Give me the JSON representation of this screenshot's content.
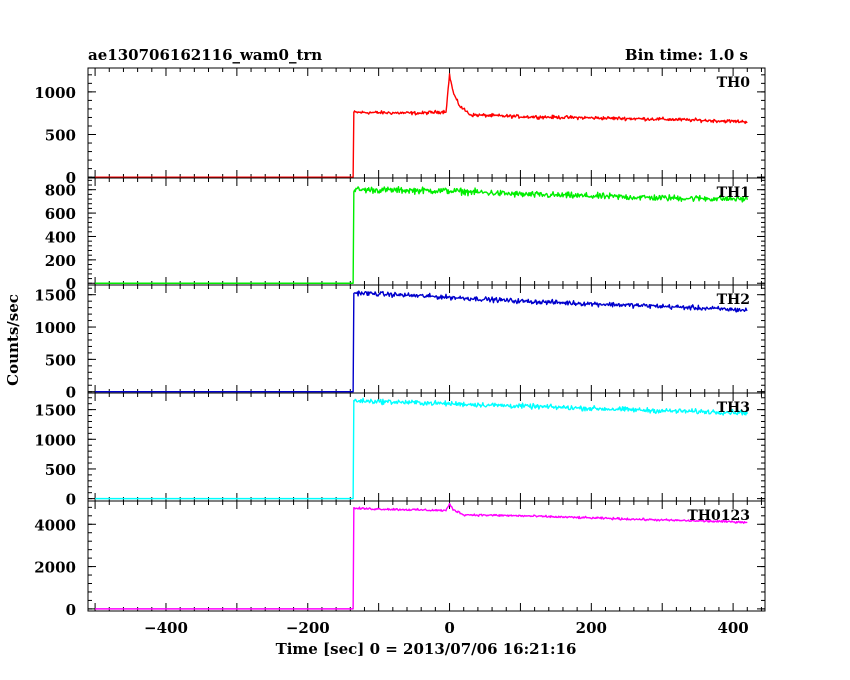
{
  "title_left": "ae130706162116_wam0_trn",
  "title_right": "Bin time: 1.0 s",
  "chart_data": {
    "type": "line",
    "xlabel": "Time [sec] 0 = 2013/07/06 16:21:16",
    "ylabel": "Counts/sec",
    "xlim": [
      -510,
      445
    ],
    "xticks": [
      -400,
      -200,
      0,
      200,
      400
    ],
    "grid": false,
    "panels": [
      {
        "name": "TH0",
        "color": "#ff0000",
        "ylim": [
          -10,
          1280
        ],
        "yticks": [
          0,
          500,
          1000
        ],
        "tick_labels": [
          "0",
          "500",
          "1000"
        ],
        "profile": {
          "step_time": -135,
          "pre": 0,
          "points": [
            [
              -135,
              760
            ],
            [
              -40,
              750
            ],
            [
              -5,
              770
            ],
            [
              0,
              1200
            ],
            [
              5,
              1000
            ],
            [
              10,
              900
            ],
            [
              15,
              830
            ],
            [
              30,
              730
            ],
            [
              100,
              710
            ],
            [
              300,
              680
            ],
            [
              420,
              650
            ]
          ],
          "noise": 22
        }
      },
      {
        "name": "TH1",
        "color": "#00ee00",
        "ylim": [
          -15,
          900
        ],
        "yticks": [
          0,
          200,
          400,
          600,
          800
        ],
        "tick_labels": [
          "0",
          "200",
          "400",
          "600",
          "800"
        ],
        "profile": {
          "step_time": -135,
          "pre": 0,
          "points": [
            [
              -135,
              800
            ],
            [
              0,
              790
            ],
            [
              100,
              760
            ],
            [
              300,
              730
            ],
            [
              420,
              720
            ]
          ],
          "noise": 30
        }
      },
      {
        "name": "TH2",
        "color": "#0000cc",
        "ylim": [
          -20,
          1650
        ],
        "yticks": [
          0,
          500,
          1000,
          1500
        ],
        "tick_labels": [
          "0",
          "500",
          "1000",
          "1500"
        ],
        "profile": {
          "step_time": -135,
          "pre": 0,
          "points": [
            [
              -135,
              1530
            ],
            [
              0,
              1460
            ],
            [
              100,
              1400
            ],
            [
              300,
              1320
            ],
            [
              420,
              1260
            ]
          ],
          "noise": 40
        }
      },
      {
        "name": "TH3",
        "color": "#00ffff",
        "ylim": [
          -40,
          1780
        ],
        "yticks": [
          0,
          500,
          1000,
          1500
        ],
        "tick_labels": [
          "0",
          "500",
          "1000",
          "1500"
        ],
        "profile": {
          "step_time": -135,
          "pre": 0,
          "points": [
            [
              -135,
              1650
            ],
            [
              0,
              1600
            ],
            [
              100,
              1560
            ],
            [
              300,
              1480
            ],
            [
              420,
              1450
            ]
          ],
          "noise": 45
        }
      },
      {
        "name": "TH0123",
        "color": "#ff00ff",
        "ylim": [
          -100,
          5100
        ],
        "yticks": [
          0,
          2000,
          4000
        ],
        "tick_labels": [
          "0",
          "2000",
          "4000"
        ],
        "profile": {
          "step_time": -135,
          "pre": 0,
          "points": [
            [
              -135,
              4750
            ],
            [
              -5,
              4650
            ],
            [
              0,
              4950
            ],
            [
              5,
              4700
            ],
            [
              20,
              4450
            ],
            [
              100,
              4400
            ],
            [
              300,
              4200
            ],
            [
              420,
              4100
            ]
          ],
          "noise": 55
        }
      }
    ],
    "x_tick_labels": [
      "−400",
      "−200",
      "0",
      "200",
      "400"
    ]
  }
}
